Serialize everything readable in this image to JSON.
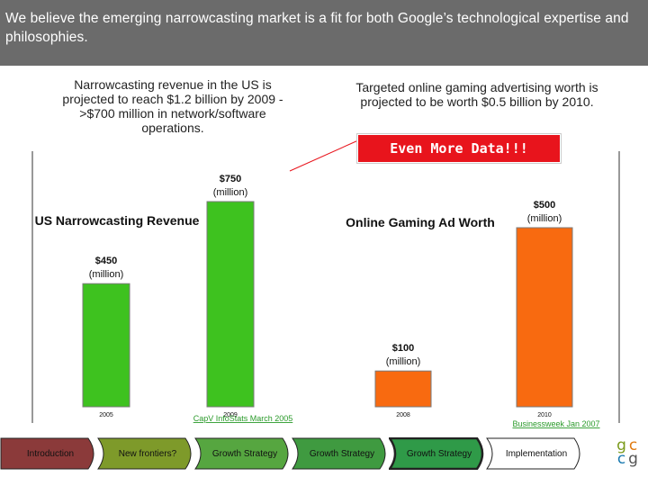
{
  "header": {
    "text": "We believe the emerging narrowcasting market is a fit for both Google’s technological expertise and philosophies."
  },
  "notes": {
    "left": "Narrowcasting revenue in the US is projected to reach $1.2 billion by 2009 - >$700 million in network/software operations.",
    "right": "Targeted online gaming advertising worth is projected to be worth $0.5 billion by 2010."
  },
  "callout": {
    "text": "Even More Data!!!",
    "color": "#e8141c"
  },
  "chart_data": [
    {
      "type": "bar",
      "title": "US Narrowcasting Revenue",
      "categories": [
        "2005",
        "2009"
      ],
      "values": [
        450,
        750
      ],
      "data_labels": [
        "$450\n(million)",
        "$750\n(million)"
      ],
      "ylim": [
        0,
        800
      ],
      "bar_color": "#3ec21f",
      "source": "CapV InfoStats March 2005"
    },
    {
      "type": "bar",
      "title": "Online Gaming Ad Worth",
      "categories": [
        "2008",
        "2010"
      ],
      "values": [
        100,
        500
      ],
      "data_labels": [
        "$100\n(million)",
        "$500\n(million)"
      ],
      "ylim": [
        0,
        700
      ],
      "bar_color": "#f86a10",
      "source": "Businessweek Jan 2007"
    }
  ],
  "nav": {
    "items": [
      {
        "label": "Introduction",
        "color": "#8b3a3a"
      },
      {
        "label": "New frontiers?",
        "color": "#7e9a2a"
      },
      {
        "label": "Growth Strategy",
        "color": "#56a640"
      },
      {
        "label": "Growth Strategy",
        "color": "#3f9a40"
      },
      {
        "label": "Growth Strategy",
        "color": "#2f9a48"
      },
      {
        "label": "Implementation",
        "color": "#ffffff"
      }
    ]
  },
  "logo": {
    "letters": [
      "g",
      "c",
      "c",
      "g"
    ],
    "colors": [
      "#7a9a1a",
      "#e07a10",
      "#1a7ab0",
      "#555555"
    ]
  }
}
